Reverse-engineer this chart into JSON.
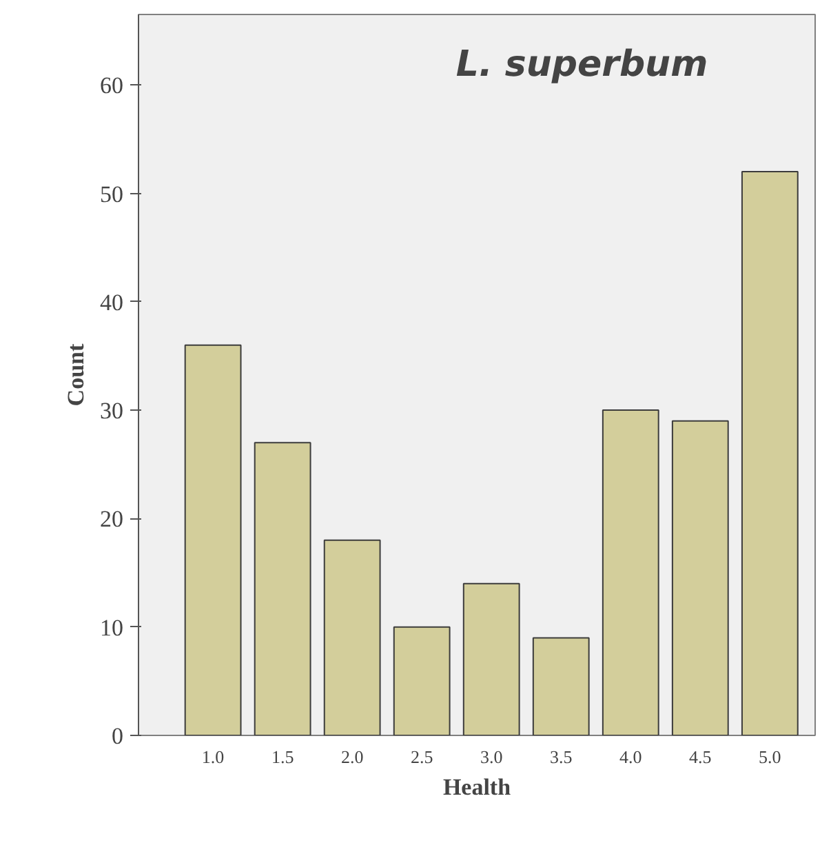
{
  "chart_data": {
    "type": "bar",
    "title": "L. superbum",
    "xlabel": "Health",
    "ylabel": "Count",
    "categories": [
      "1.0",
      "1.5",
      "2.0",
      "2.5",
      "3.0",
      "3.5",
      "4.0",
      "4.5",
      "5.0"
    ],
    "values": [
      36,
      27,
      18,
      10,
      14,
      9,
      30,
      29,
      52
    ],
    "color": "#d3ce9b",
    "ylim": [
      0,
      66.5
    ],
    "yticks": [
      0,
      10,
      20,
      30,
      40,
      50,
      60
    ],
    "grid": false
  }
}
